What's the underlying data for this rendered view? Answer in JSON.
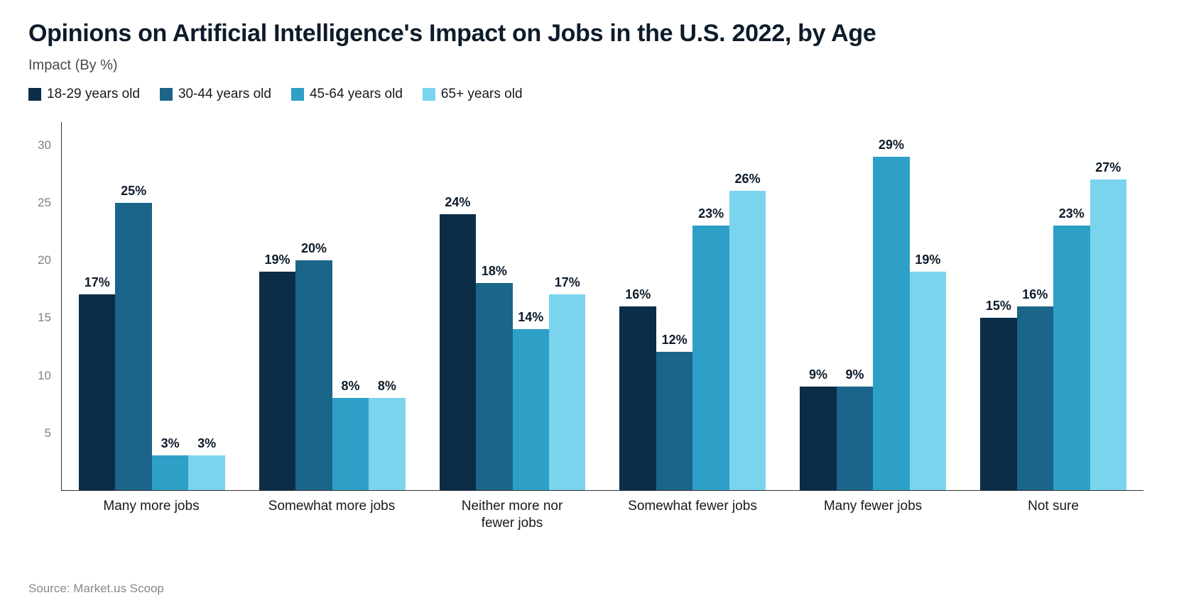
{
  "title": "Opinions on Artificial Intelligence's Impact on Jobs in the U.S. 2022, by Age",
  "subtitle": "Impact (By %)",
  "source": "Source: Market.us Scoop",
  "chart": {
    "type": "bar",
    "y_max": 32,
    "y_ticks": [
      5,
      10,
      15,
      20,
      25,
      30
    ],
    "background_color": "#ffffff",
    "axis_color": "#333333",
    "tick_color": "#808080",
    "title_fontsize": 34,
    "subtitle_fontsize": 20,
    "datalabel_fontsize": 18,
    "series": [
      {
        "label": "18-29 years old",
        "color": "#0b2d48"
      },
      {
        "label": "30-44 years old",
        "color": "#1a6589"
      },
      {
        "label": "45-64 years old",
        "color": "#2ea0c8"
      },
      {
        "label": "65+ years old",
        "color": "#7bd4ee"
      }
    ],
    "categories": [
      {
        "label": "Many more jobs",
        "values": [
          17,
          25,
          3,
          3
        ]
      },
      {
        "label": "Somewhat more jobs",
        "values": [
          19,
          20,
          8,
          8
        ]
      },
      {
        "label": "Neither more nor\nfewer jobs",
        "values": [
          24,
          18,
          14,
          17
        ]
      },
      {
        "label": "Somewhat fewer jobs",
        "values": [
          16,
          12,
          23,
          26
        ]
      },
      {
        "label": "Many fewer jobs",
        "values": [
          9,
          9,
          29,
          19
        ]
      },
      {
        "label": "Not sure",
        "values": [
          15,
          16,
          23,
          27
        ]
      }
    ]
  }
}
